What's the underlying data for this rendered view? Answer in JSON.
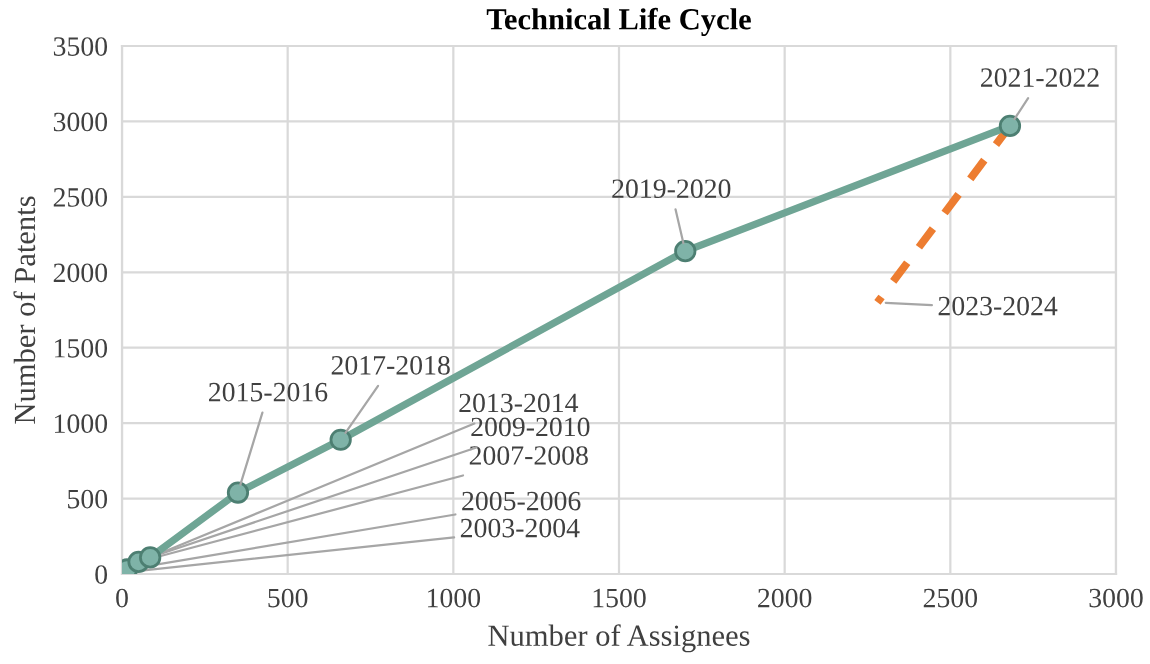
{
  "chart_data": {
    "type": "line",
    "title": "Technical Life Cycle",
    "xlabel": "Number of Assignees",
    "ylabel": "Number of Patents",
    "xlim": [
      0,
      3000
    ],
    "xticks": [
      0,
      500,
      1000,
      1500,
      2000,
      2500,
      3000
    ],
    "ylim": [
      0,
      3500
    ],
    "yticks": [
      0,
      500,
      1000,
      1500,
      2000,
      2500,
      3000,
      3500
    ],
    "grid": true,
    "legend": false,
    "series": [
      {
        "color": "#6fa595",
        "x": [
          5,
          15,
          50,
          85,
          350,
          660,
          1700,
          2680
        ],
        "values": [
          10,
          30,
          80,
          110,
          540,
          890,
          2140,
          2970
        ],
        "marker": "circle",
        "line_style": "solid"
      },
      {
        "color": "#ed7d31",
        "x": [
          2680,
          2280
        ],
        "values": [
          2970,
          1800
        ],
        "marker": "none",
        "line_style": "dashed"
      }
    ],
    "annotations": [
      {
        "text": "2003-2004",
        "x": 5,
        "y": 10
      },
      {
        "text": "2005-2006",
        "x": 15,
        "y": 30
      },
      {
        "text": "2007-2008",
        "x": 50,
        "y": 80
      },
      {
        "text": "2009-2010",
        "x": 85,
        "y": 110
      },
      {
        "text": "2013-2014",
        "x": 85,
        "y": 110
      },
      {
        "text": "2015-2016",
        "x": 350,
        "y": 540
      },
      {
        "text": "2017-2018",
        "x": 660,
        "y": 890
      },
      {
        "text": "2019-2020",
        "x": 1700,
        "y": 2140
      },
      {
        "text": "2021-2022",
        "x": 2680,
        "y": 2970
      },
      {
        "text": "2023-2024",
        "x": 2280,
        "y": 1800
      }
    ]
  }
}
